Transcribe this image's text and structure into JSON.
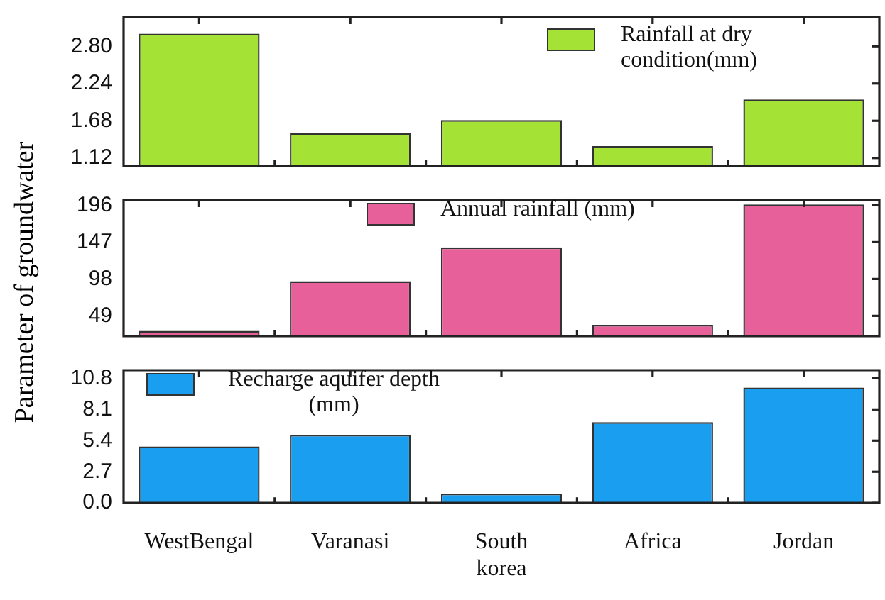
{
  "chart_data": [
    {
      "type": "bar",
      "categories": [
        null,
        null,
        null,
        null,
        null
      ],
      "series": [
        {
          "name": "Rainfall at dry condition(mm)",
          "color": "#a4e236",
          "values": [
            2.99,
            1.49,
            1.69,
            1.3,
            2.0
          ]
        }
      ],
      "ylim": [
        1.0,
        3.24
      ],
      "yticks": [
        {
          "value": 1.12,
          "label": "1.12"
        },
        {
          "value": 1.68,
          "label": "1.68"
        },
        {
          "value": 2.24,
          "label": "2.24"
        },
        {
          "value": 2.8,
          "label": "2.80"
        }
      ],
      "legend": "top right",
      "tick_labels": "y"
    },
    {
      "type": "bar",
      "ylabel": "Parameter of groundwater",
      "categories": [
        null,
        null,
        null,
        null,
        null
      ],
      "series": [
        {
          "name": "Annual rainfall (mm)",
          "color": "#e8609a",
          "values": [
            29,
            95,
            140,
            37,
            197
          ]
        }
      ],
      "ylim": [
        22,
        203
      ],
      "yticks": [
        49,
        98,
        147,
        196
      ],
      "legend": "top",
      "tick_labels": "y"
    },
    {
      "type": "bar",
      "categories": [
        "WestBengal",
        "Varanasi",
        "South korea",
        "Africa",
        "Jordan"
      ],
      "series": [
        {
          "name": "Recharge aquifer depth (mm)",
          "color": "#1a9ff0",
          "values": [
            4.9,
            5.9,
            0.8,
            7.0,
            10.0
          ]
        }
      ],
      "ylim": [
        0,
        11.5
      ],
      "yticks": [
        {
          "value": 0,
          "label": "0.0"
        },
        2.7,
        5.4,
        8.1,
        10.8
      ],
      "legend": "top left"
    }
  ]
}
